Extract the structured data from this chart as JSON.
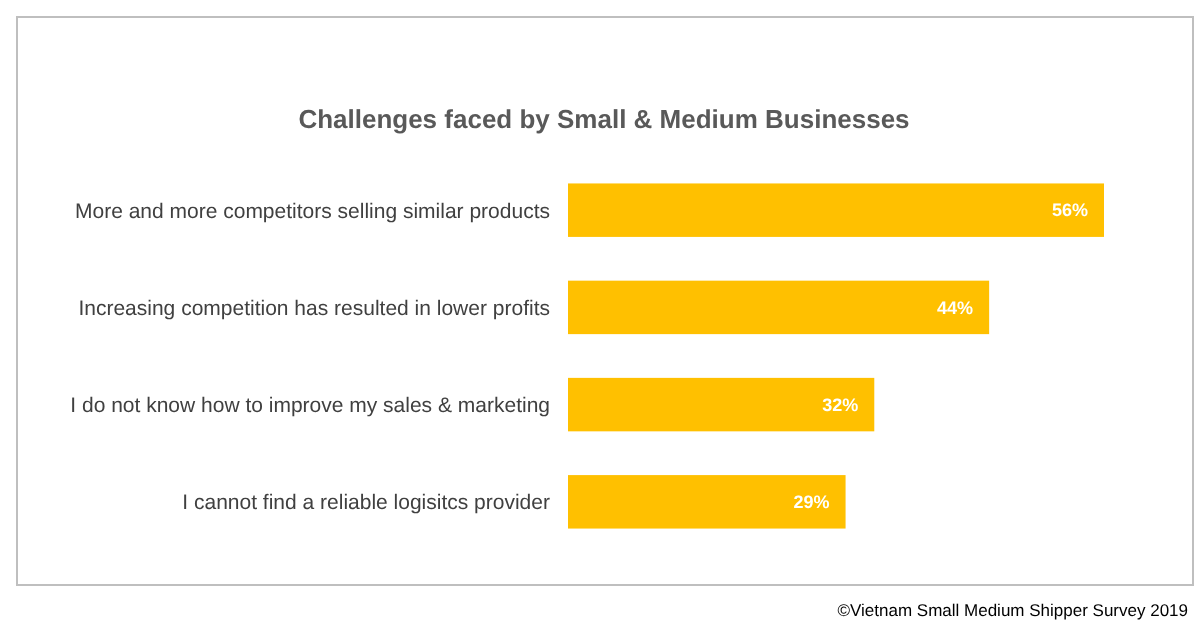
{
  "chart_data": {
    "type": "bar",
    "orientation": "horizontal",
    "title": "Challenges faced by Small & Medium Businesses",
    "categories": [
      "More and more competitors selling similar products",
      "Increasing competition has resulted in lower profits",
      "I do not know how to improve my sales & marketing",
      "I cannot find a reliable logisitcs provider"
    ],
    "values": [
      56,
      44,
      32,
      29
    ],
    "color": "#ffc000",
    "value_labels": [
      "56%",
      "44%",
      "32%",
      "29%"
    ],
    "annotations": [
      "©Vietnam Small Medium Shipper Survey 2019"
    ]
  }
}
